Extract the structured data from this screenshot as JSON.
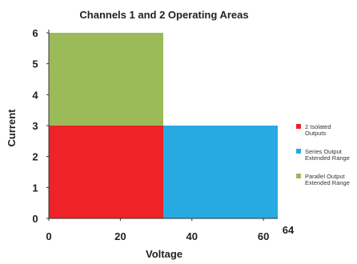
{
  "chart_data": {
    "type": "area",
    "title": "Channels 1 and 2 Operating Areas",
    "xlabel": "Voltage",
    "ylabel": "Current",
    "xlim": [
      0,
      64
    ],
    "ylim": [
      0,
      6
    ],
    "x_ticks": [
      0,
      20,
      40,
      60
    ],
    "x_tick_labels": [
      "0",
      "20",
      "40",
      "60"
    ],
    "y_ticks": [
      0,
      1,
      2,
      3,
      4,
      5,
      6
    ],
    "y_tick_labels": [
      "0",
      "1",
      "2",
      "3",
      "4",
      "5",
      "6"
    ],
    "x_max_label": "64",
    "grid": false,
    "legend_position": "right",
    "regions": [
      {
        "name_lines": [
          "2 Isolated",
          "Outputs"
        ],
        "color": "#ee2227",
        "x_range": [
          0,
          32
        ],
        "y_range": [
          0,
          3
        ]
      },
      {
        "name_lines": [
          "Series Output",
          "Extended Range"
        ],
        "color": "#27aae1",
        "x_range": [
          32,
          64
        ],
        "y_range": [
          0,
          3
        ]
      },
      {
        "name_lines": [
          "Parallel Output",
          "Extended Range"
        ],
        "color": "#9bbb59",
        "x_range": [
          0,
          32
        ],
        "y_range": [
          3,
          6
        ]
      }
    ]
  }
}
